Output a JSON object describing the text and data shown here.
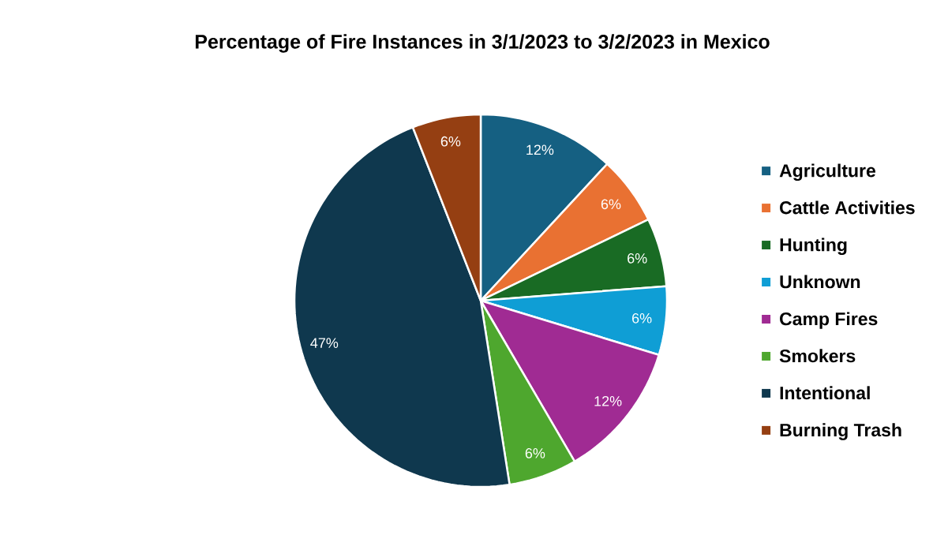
{
  "chart_data": {
    "type": "pie",
    "title": "Percentage of Fire Instances in 3/1/2023 to 3/2/2023 in Mexico",
    "categories": [
      "Agriculture",
      "Cattle Activities",
      "Hunting",
      "Unknown",
      "Camp Fires",
      "Smokers",
      "Intentional",
      "Burning Trash"
    ],
    "values": [
      12,
      6,
      6,
      6,
      12,
      6,
      47,
      6
    ],
    "value_labels": [
      "12%",
      "6%",
      "6%",
      "6%",
      "12%",
      "6%",
      "47%",
      "6%"
    ],
    "colors": [
      "#156082",
      "#e97132",
      "#196b24",
      "#0f9ed5",
      "#a02b93",
      "#4ea72e",
      "#0f384e",
      "#953f12"
    ],
    "legend": "right"
  }
}
